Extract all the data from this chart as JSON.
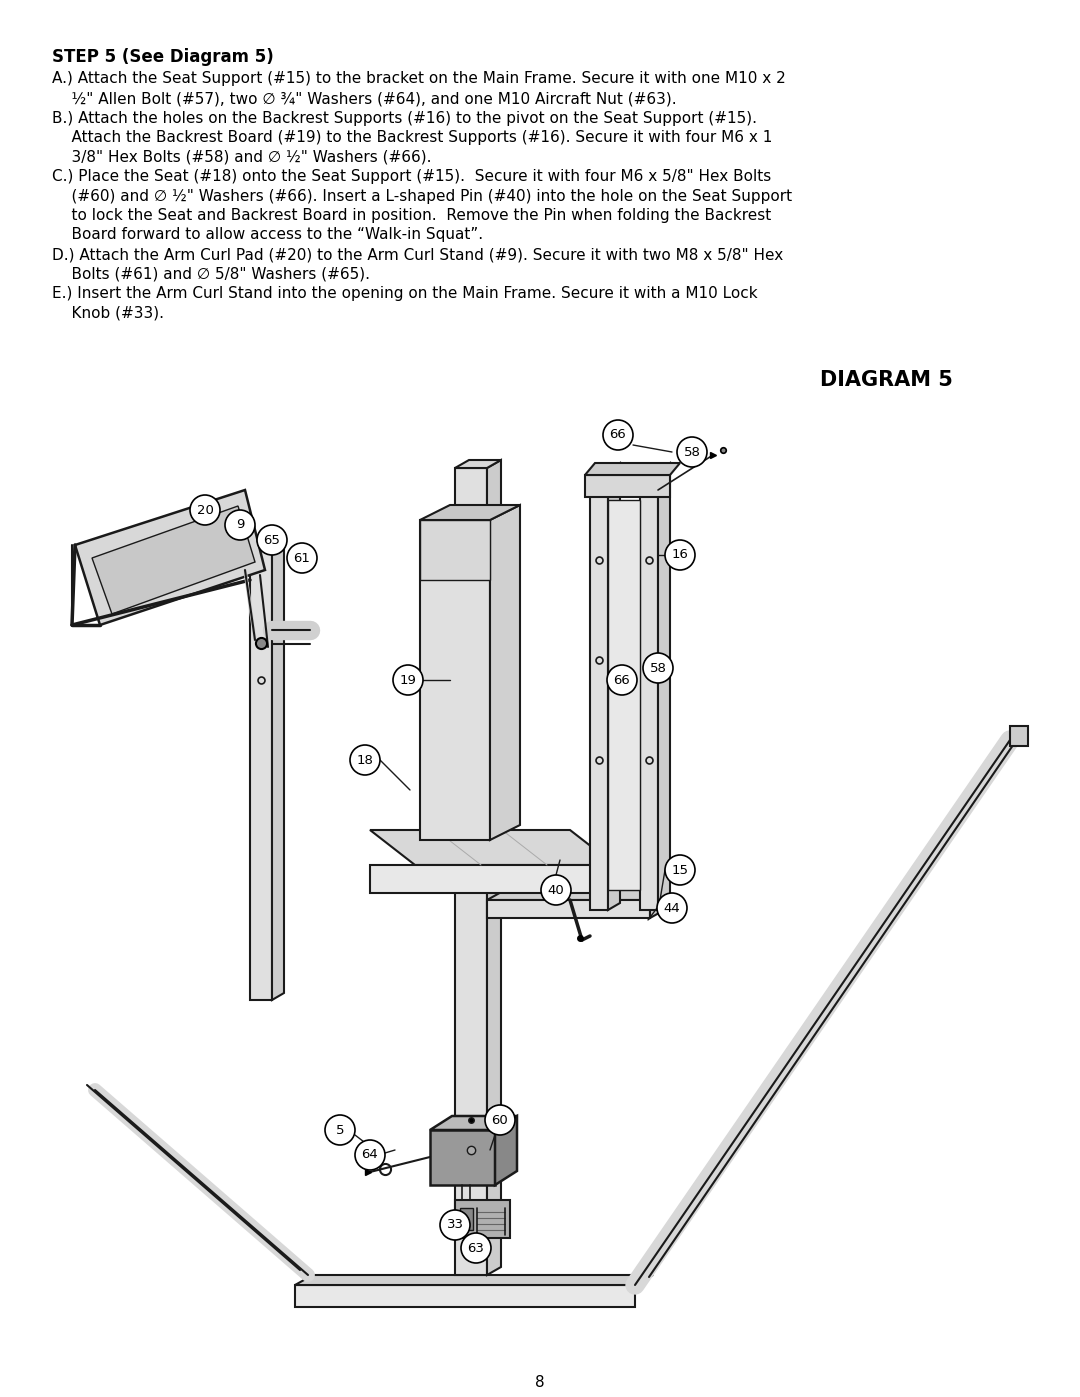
{
  "page_bg": "#ffffff",
  "title_text": "STEP 5 (See Diagram 5)",
  "line_A": "A.) Attach the Seat Support (#15) to the bracket on the Main Frame. Secure it with one M10 x 2",
  "line_A2": "    ½\" Allen Bolt (#57), two ∅ ¾\" Washers (#64), and one M10 Aircraft Nut (#63).",
  "line_B": "B.) Attach the holes on the Backrest Supports (#16) to the pivot on the Seat Support (#15).",
  "line_B2": "    Attach the Backrest Board (#19) to the Backrest Supports (#16). Secure it with four M6 x 1",
  "line_B3": "    3/8\" Hex Bolts (#58) and ∅ ½\" Washers (#66).",
  "line_C": "C.) Place the Seat (#18) onto the Seat Support (#15).  Secure it with four M6 x 5/8\" Hex Bolts",
  "line_C2": "    (#60) and ∅ ½\" Washers (#66). Insert a L-shaped Pin (#40) into the hole on the Seat Support",
  "line_C3": "    to lock the Seat and Backrest Board in position.  Remove the Pin when folding the Backrest",
  "line_C4": "    Board forward to allow access to the “Walk-in Squat”.",
  "line_D": "D.) Attach the Arm Curl Pad (#20) to the Arm Curl Stand (#9). Secure it with two M8 x 5/8\" Hex",
  "line_D2": "    Bolts (#61) and ∅ 5/8\" Washers (#65).",
  "line_E": "E.) Insert the Arm Curl Stand into the opening on the Main Frame. Secure it with a M10 Lock",
  "line_E2": "    Knob (#33).",
  "diagram_title": "DIAGRAM 5",
  "page_number": "8",
  "text_color": "#000000",
  "font_size_title": 12,
  "font_size_body": 11,
  "font_size_diagram_title": 15,
  "font_size_part": 9,
  "font_size_page": 11
}
